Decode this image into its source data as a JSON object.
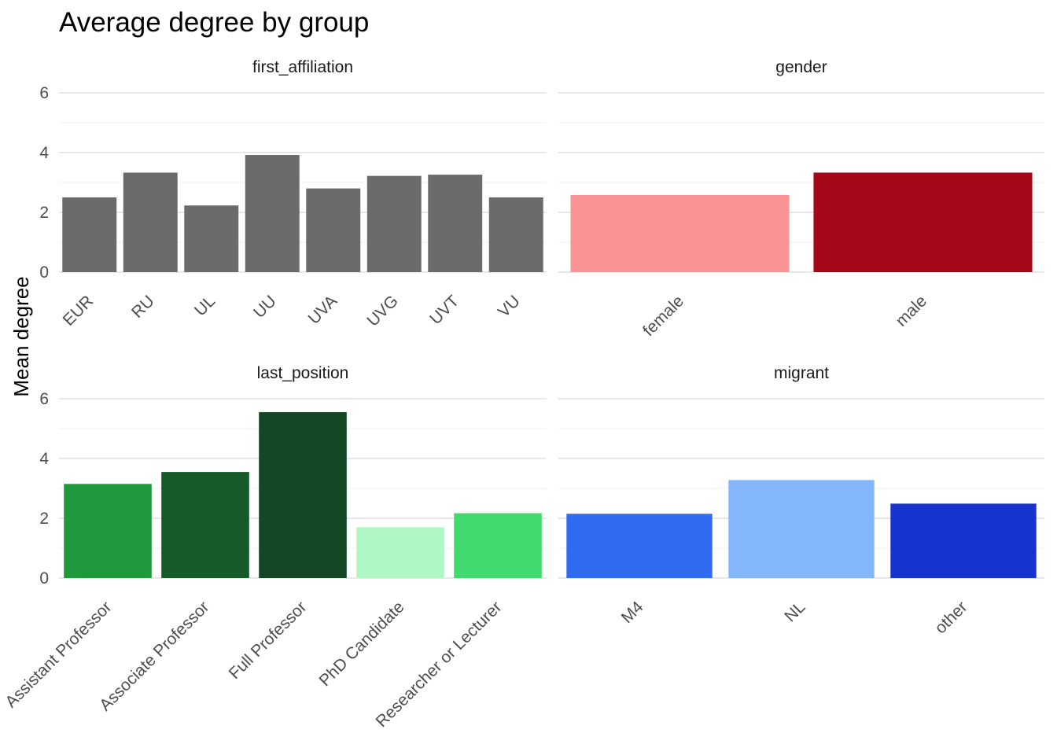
{
  "chart_data": {
    "type": "bar",
    "title": "Average degree by group",
    "ylabel": "Mean degree",
    "xlabel": "",
    "ylim": [
      0,
      6
    ],
    "yticks": [
      0,
      2,
      4,
      6
    ],
    "grid": true,
    "legend": "none",
    "facets": [
      {
        "name": "first_affiliation",
        "categories": [
          "EUR",
          "RU",
          "UL",
          "UU",
          "UVA",
          "UVG",
          "UVT",
          "VU"
        ],
        "values": [
          2.5,
          3.33,
          2.23,
          3.92,
          2.8,
          3.22,
          3.26,
          2.5
        ],
        "colors": [
          "#6b6b6b",
          "#6b6b6b",
          "#6b6b6b",
          "#6b6b6b",
          "#6b6b6b",
          "#6b6b6b",
          "#6b6b6b",
          "#6b6b6b"
        ]
      },
      {
        "name": "gender",
        "categories": [
          "female",
          "male"
        ],
        "values": [
          2.58,
          3.33
        ],
        "colors": [
          "#f99394",
          "#a50919"
        ]
      },
      {
        "name": "last_position",
        "categories": [
          "Assistant Professor",
          "Associate Professor",
          "Full Professor",
          "PhD Candidate",
          "Researcher or Lecturer"
        ],
        "values": [
          3.15,
          3.55,
          5.55,
          1.7,
          2.17
        ],
        "colors": [
          "#1e993c",
          "#175a2a",
          "#144725",
          "#b1f7c5",
          "#42da6e"
        ]
      },
      {
        "name": "migrant",
        "categories": [
          "M4",
          "NL",
          "other"
        ],
        "values": [
          2.15,
          3.28,
          2.49
        ],
        "colors": [
          "#306bf1",
          "#84b6fb",
          "#1733ce"
        ]
      }
    ]
  }
}
